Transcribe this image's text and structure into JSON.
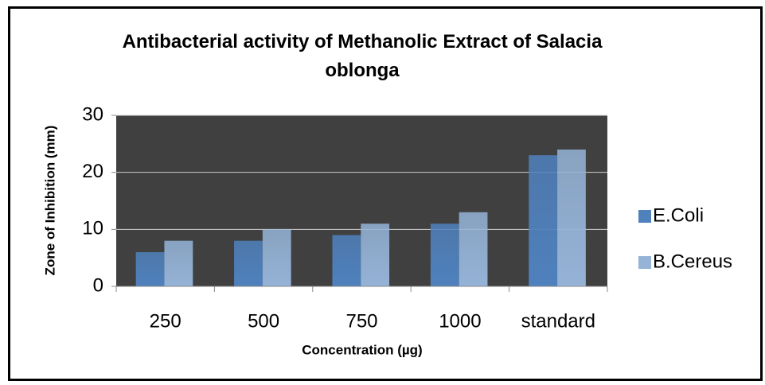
{
  "chart_data": {
    "type": "bar",
    "title": "Antibacterial activity of Methanolic Extract of Salacia oblonga",
    "x_label": "Concentration (µg)",
    "y_label": "Zone of Inhibition (mm)",
    "categories": [
      "250",
      "500",
      "750",
      "1000",
      "standard"
    ],
    "series": [
      {
        "name": "E.Coli",
        "color": "#4f81bd",
        "values": [
          6,
          8,
          9,
          11,
          23
        ]
      },
      {
        "name": "B.Cereus",
        "color": "#95b3d7",
        "values": [
          8,
          10,
          11,
          13,
          24
        ]
      }
    ],
    "ylim": [
      0,
      30
    ],
    "yticks": [
      0,
      10,
      20,
      30
    ],
    "grid": true,
    "legend": "right"
  }
}
